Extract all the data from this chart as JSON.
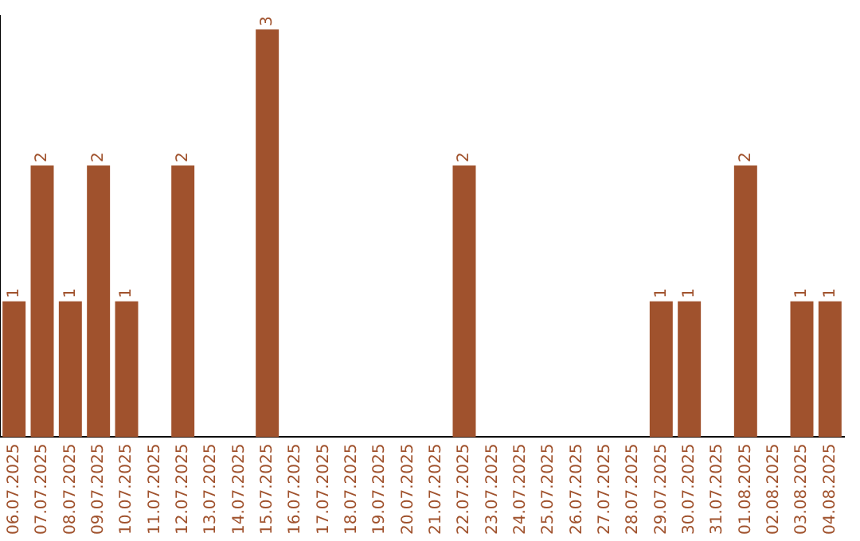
{
  "chart_data": {
    "type": "bar",
    "categories": [
      "06.07.2025",
      "07.07.2025",
      "08.07.2025",
      "09.07.2025",
      "10.07.2025",
      "11.07.2025",
      "12.07.2025",
      "13.07.2025",
      "14.07.2025",
      "15.07.2025",
      "16.07.2025",
      "17.07.2025",
      "18.07.2025",
      "19.07.2025",
      "20.07.2025",
      "21.07.2025",
      "22.07.2025",
      "23.07.2025",
      "24.07.2025",
      "25.07.2025",
      "26.07.2025",
      "27.07.2025",
      "28.07.2025",
      "29.07.2025",
      "30.07.2025",
      "31.07.2025",
      "01.08.2025",
      "02.08.2025",
      "03.08.2025",
      "04.08.2025"
    ],
    "values": [
      1,
      2,
      1,
      2,
      1,
      0,
      2,
      0,
      0,
      3,
      0,
      0,
      0,
      0,
      0,
      0,
      2,
      0,
      0,
      0,
      0,
      0,
      0,
      1,
      1,
      0,
      2,
      0,
      1,
      1
    ],
    "value_labels": [
      "1",
      "2",
      "1",
      "2",
      "1",
      null,
      "2",
      null,
      null,
      "3",
      null,
      null,
      null,
      null,
      null,
      null,
      "2",
      null,
      null,
      null,
      null,
      null,
      null,
      "1",
      "1",
      null,
      "2",
      null,
      "1",
      "1"
    ],
    "color": "#a0522d",
    "ylim": [
      0,
      3.1
    ],
    "grid": false,
    "legend": false,
    "tick_labels": "x"
  }
}
